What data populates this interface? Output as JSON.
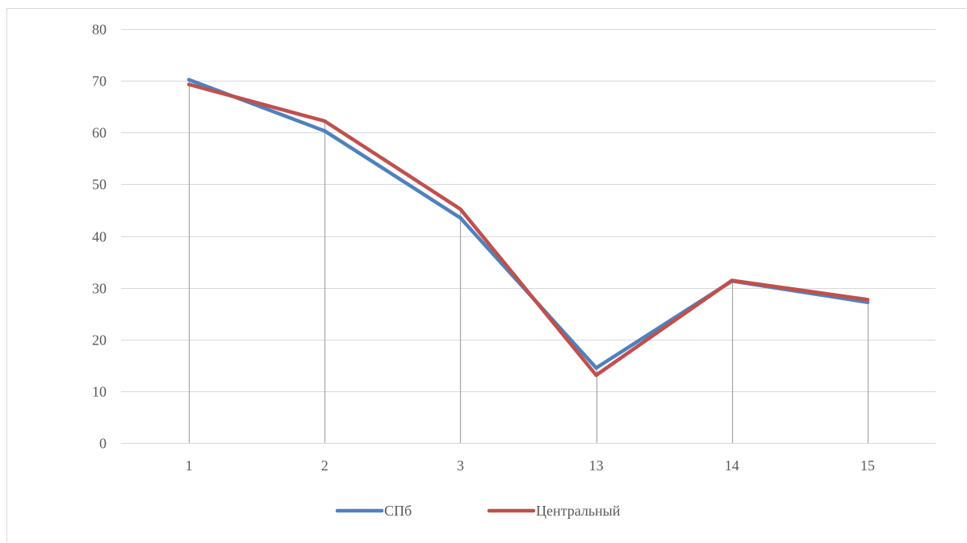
{
  "chart_data": {
    "type": "line",
    "title": "",
    "xlabel": "",
    "ylabel": "",
    "categories": [
      "1",
      "2",
      "3",
      "13",
      "14",
      "15"
    ],
    "ylim": [
      0,
      80
    ],
    "yticks": [
      0,
      10,
      20,
      30,
      40,
      50,
      60,
      70,
      80
    ],
    "grid": true,
    "drop_lines": true,
    "legend_position": "bottom",
    "series": [
      {
        "name": "СПб",
        "color": "#4f81bd",
        "values": [
          70.2,
          60.3,
          43.5,
          14.5,
          31.3,
          27.2
        ]
      },
      {
        "name": "Центральный",
        "color": "#c0504d",
        "values": [
          69.3,
          62.2,
          45.2,
          13.1,
          31.4,
          27.7
        ]
      }
    ]
  }
}
